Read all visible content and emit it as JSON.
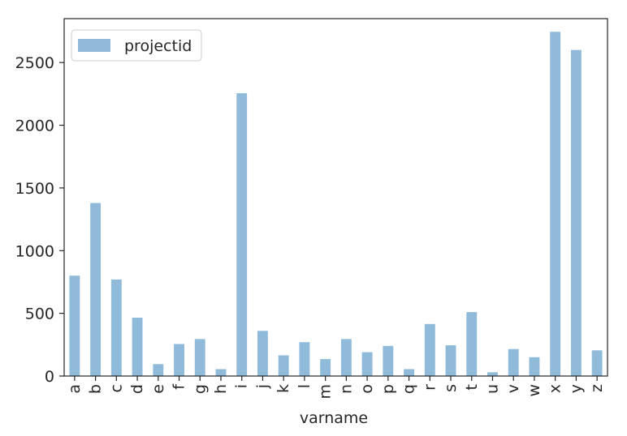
{
  "chart_data": {
    "type": "bar",
    "categories": [
      "a",
      "b",
      "c",
      "d",
      "e",
      "f",
      "g",
      "h",
      "i",
      "j",
      "k",
      "l",
      "m",
      "n",
      "o",
      "p",
      "q",
      "r",
      "s",
      "t",
      "u",
      "v",
      "w",
      "x",
      "y",
      "z"
    ],
    "series": [
      {
        "name": "projectid",
        "color": "#8fbad9",
        "values": [
          800,
          1380,
          770,
          465,
          95,
          255,
          295,
          55,
          2255,
          360,
          165,
          270,
          135,
          295,
          190,
          240,
          55,
          415,
          245,
          510,
          30,
          215,
          150,
          2745,
          2600,
          205
        ]
      }
    ],
    "xlabel": "varname",
    "ylabel": "",
    "ylim": [
      0,
      2850
    ],
    "yticks": [
      0,
      500,
      1000,
      1500,
      2000,
      2500
    ],
    "grid": false,
    "legend_position": "top-left"
  }
}
